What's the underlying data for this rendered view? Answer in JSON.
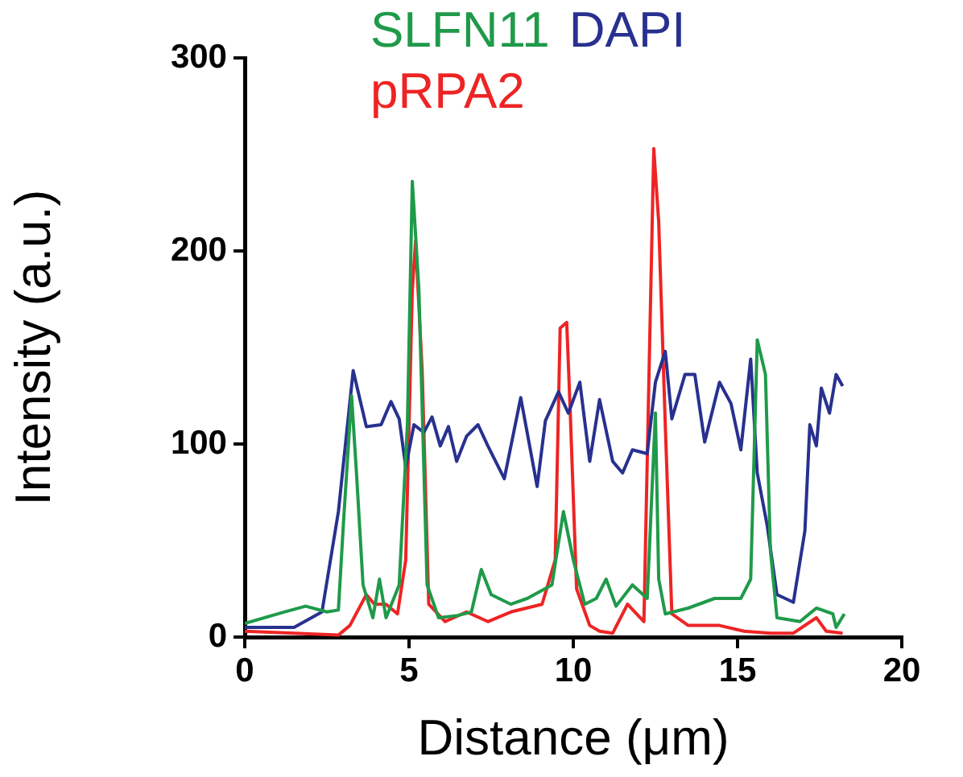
{
  "chart_data": {
    "type": "line",
    "xlabel": "Distance (μm)",
    "ylabel": "Intensity (a.u.)",
    "xlim": [
      0,
      20
    ],
    "xticks": [
      0,
      5,
      10,
      15,
      20
    ],
    "ylim": [
      0,
      300
    ],
    "yticks": [
      0,
      100,
      200,
      300
    ],
    "grid": false,
    "legend": "top",
    "marker": "none",
    "line_style": "solid",
    "series": [
      {
        "name": "SLFN11",
        "color": "#1f9a4a",
        "x": [
          0,
          1.2,
          1.85,
          2.5,
          2.85,
          3.0,
          3.25,
          3.4,
          3.6,
          3.9,
          4.1,
          4.3,
          4.7,
          4.95,
          5.1,
          5.3,
          5.55,
          5.9,
          6.45,
          6.9,
          7.2,
          7.5,
          8.1,
          8.6,
          9.35,
          9.7,
          10.0,
          10.35,
          10.7,
          11.0,
          11.3,
          11.8,
          12.25,
          12.5,
          12.6,
          12.8,
          13.5,
          14.3,
          15.1,
          15.4,
          15.6,
          15.85,
          16.0,
          16.2,
          16.9,
          17.4,
          17.9,
          18.0,
          18.25
        ],
        "values": [
          7,
          13,
          16,
          13,
          14,
          58,
          125,
          85,
          27,
          10,
          30,
          10,
          27,
          110,
          236,
          180,
          27,
          10,
          11,
          13,
          35,
          22,
          17,
          20,
          27,
          65,
          40,
          17,
          20,
          30,
          16,
          27,
          20,
          116,
          30,
          12,
          15,
          20,
          20,
          30,
          154,
          136,
          45,
          10,
          8,
          15,
          12,
          5,
          12
        ]
      },
      {
        "name": "DAPI",
        "color": "#28318f",
        "x": [
          0,
          1.5,
          2.35,
          2.85,
          3.3,
          3.7,
          4.15,
          4.45,
          4.7,
          4.9,
          5.15,
          5.45,
          5.7,
          5.95,
          6.2,
          6.45,
          6.75,
          7.1,
          7.4,
          7.9,
          8.4,
          8.9,
          9.15,
          9.55,
          9.85,
          10.2,
          10.5,
          10.8,
          11.2,
          11.5,
          11.8,
          12.25,
          12.5,
          12.8,
          13.0,
          13.4,
          13.7,
          14.0,
          14.45,
          14.8,
          15.1,
          15.4,
          15.6,
          15.9,
          16.2,
          16.7,
          17.05,
          17.2,
          17.4,
          17.55,
          17.8,
          18.0,
          18.2
        ],
        "values": [
          5,
          5,
          13,
          65,
          138,
          109,
          110,
          122,
          113,
          88,
          110,
          106,
          114,
          99,
          109,
          91,
          104,
          110,
          99,
          82,
          124,
          78,
          112,
          127,
          116,
          132,
          91,
          123,
          91,
          85,
          97,
          95,
          132,
          148,
          113,
          136,
          136,
          101,
          132,
          121,
          97,
          144,
          85,
          58,
          22,
          18,
          55,
          110,
          99,
          129,
          116,
          136,
          130
        ]
      },
      {
        "name": "pRPA2",
        "color": "#ee2424",
        "x": [
          0,
          2.85,
          3.2,
          3.7,
          3.95,
          4.3,
          4.65,
          4.9,
          5.1,
          5.2,
          5.4,
          5.6,
          6.1,
          6.75,
          7.4,
          8.1,
          9.05,
          9.45,
          9.6,
          9.8,
          9.9,
          10.1,
          10.5,
          10.8,
          11.2,
          11.65,
          12.15,
          12.3,
          12.45,
          12.6,
          12.8,
          13.0,
          13.5,
          14.45,
          15.2,
          16.0,
          16.7,
          17.4,
          17.7,
          18.2
        ],
        "values": [
          3,
          1,
          6,
          22,
          17,
          17,
          12,
          40,
          180,
          205,
          138,
          17,
          8,
          13,
          8,
          13,
          17,
          40,
          160,
          163,
          120,
          25,
          6,
          3,
          2,
          17,
          8,
          132,
          253,
          215,
          110,
          12,
          6,
          6,
          3,
          2,
          2,
          10,
          3,
          2
        ]
      }
    ]
  }
}
